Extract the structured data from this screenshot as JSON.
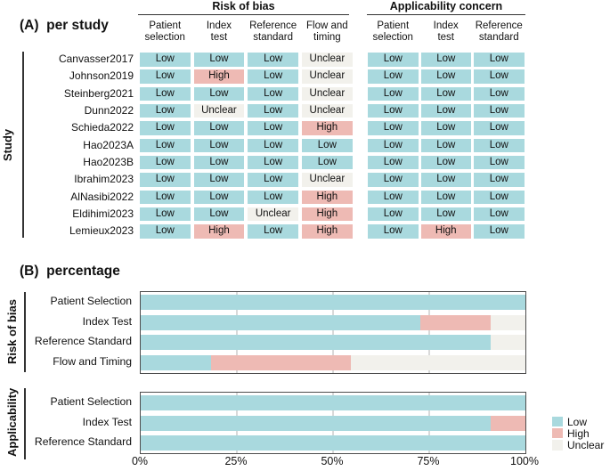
{
  "colors": {
    "low": "#a9d9de",
    "high": "#eebab4",
    "unclear": "#f2f1ec",
    "grid": "#d9d9d9",
    "box_border": "#4d4d4d",
    "bracket": "#333333",
    "text": "#111111"
  },
  "panel_a": {
    "title": "(A)  per study",
    "y_axis_label": "Study",
    "group_headers": [
      "Risk of bias",
      "Applicability concern"
    ],
    "rob_columns": [
      "Patient\nselection",
      "Index\ntest",
      "Reference\nstandard",
      "Flow and\ntiming"
    ],
    "app_columns": [
      "Patient\nselection",
      "Index\ntest",
      "Reference\nstandard"
    ]
  },
  "panel_b": {
    "title": "(B)  percentage",
    "x_ticks": [
      "0%",
      "25%",
      "50%",
      "75%",
      "100%"
    ],
    "legend": [
      "Low",
      "High",
      "Unclear"
    ]
  },
  "chart_data": [
    {
      "type": "table",
      "panel": "A",
      "title": "(A) per study",
      "column_groups": [
        {
          "label": "Risk of bias",
          "columns": [
            "Patient selection",
            "Index test",
            "Reference standard",
            "Flow and timing"
          ]
        },
        {
          "label": "Applicability concern",
          "columns": [
            "Patient selection",
            "Index test",
            "Reference standard"
          ]
        }
      ],
      "rows": [
        {
          "study": "Canvasser2017",
          "risk_of_bias": [
            "Low",
            "Low",
            "Low",
            "Unclear"
          ],
          "applicability": [
            "Low",
            "Low",
            "Low"
          ]
        },
        {
          "study": "Johnson2019",
          "risk_of_bias": [
            "Low",
            "High",
            "Low",
            "Unclear"
          ],
          "applicability": [
            "Low",
            "Low",
            "Low"
          ]
        },
        {
          "study": "Steinberg2021",
          "risk_of_bias": [
            "Low",
            "Low",
            "Low",
            "Unclear"
          ],
          "applicability": [
            "Low",
            "Low",
            "Low"
          ]
        },
        {
          "study": "Dunn2022",
          "risk_of_bias": [
            "Low",
            "Unclear",
            "Low",
            "Unclear"
          ],
          "applicability": [
            "Low",
            "Low",
            "Low"
          ]
        },
        {
          "study": "Schieda2022",
          "risk_of_bias": [
            "Low",
            "Low",
            "Low",
            "High"
          ],
          "applicability": [
            "Low",
            "Low",
            "Low"
          ]
        },
        {
          "study": "Hao2023A",
          "risk_of_bias": [
            "Low",
            "Low",
            "Low",
            "Low"
          ],
          "applicability": [
            "Low",
            "Low",
            "Low"
          ]
        },
        {
          "study": "Hao2023B",
          "risk_of_bias": [
            "Low",
            "Low",
            "Low",
            "Low"
          ],
          "applicability": [
            "Low",
            "Low",
            "Low"
          ]
        },
        {
          "study": "Ibrahim2023",
          "risk_of_bias": [
            "Low",
            "Low",
            "Low",
            "Unclear"
          ],
          "applicability": [
            "Low",
            "Low",
            "Low"
          ]
        },
        {
          "study": "AlNasibi2022",
          "risk_of_bias": [
            "Low",
            "Low",
            "Low",
            "High"
          ],
          "applicability": [
            "Low",
            "Low",
            "Low"
          ]
        },
        {
          "study": "Eldihimi2023",
          "risk_of_bias": [
            "Low",
            "Low",
            "Unclear",
            "High"
          ],
          "applicability": [
            "Low",
            "Low",
            "Low"
          ]
        },
        {
          "study": "Lemieux2023",
          "risk_of_bias": [
            "Low",
            "High",
            "Low",
            "High"
          ],
          "applicability": [
            "Low",
            "High",
            "Low"
          ]
        }
      ]
    },
    {
      "type": "bar",
      "stacked": true,
      "orientation": "horizontal",
      "group_label": "Risk of bias",
      "categories": [
        "Patient Selection",
        "Index Test",
        "Reference Standard",
        "Flow and Timing"
      ],
      "series": [
        {
          "name": "Low",
          "values": [
            100,
            72.7,
            90.9,
            18.2
          ]
        },
        {
          "name": "High",
          "values": [
            0,
            18.2,
            0,
            36.4
          ]
        },
        {
          "name": "Unclear",
          "values": [
            0,
            9.1,
            9.1,
            45.5
          ]
        }
      ],
      "xlim": [
        0,
        100
      ],
      "x_ticks": [
        "0%",
        "25%",
        "50%",
        "75%",
        "100%"
      ],
      "grid": true,
      "legend_position": "right"
    },
    {
      "type": "bar",
      "stacked": true,
      "orientation": "horizontal",
      "group_label": "Applicability",
      "categories": [
        "Patient Selection",
        "Index Test",
        "Reference Standard"
      ],
      "series": [
        {
          "name": "Low",
          "values": [
            100,
            90.9,
            100
          ]
        },
        {
          "name": "High",
          "values": [
            0,
            9.1,
            0
          ]
        },
        {
          "name": "Unclear",
          "values": [
            0,
            0,
            0
          ]
        }
      ],
      "xlim": [
        0,
        100
      ],
      "x_ticks": [
        "0%",
        "25%",
        "50%",
        "75%",
        "100%"
      ],
      "grid": true,
      "legend_position": "right"
    }
  ]
}
